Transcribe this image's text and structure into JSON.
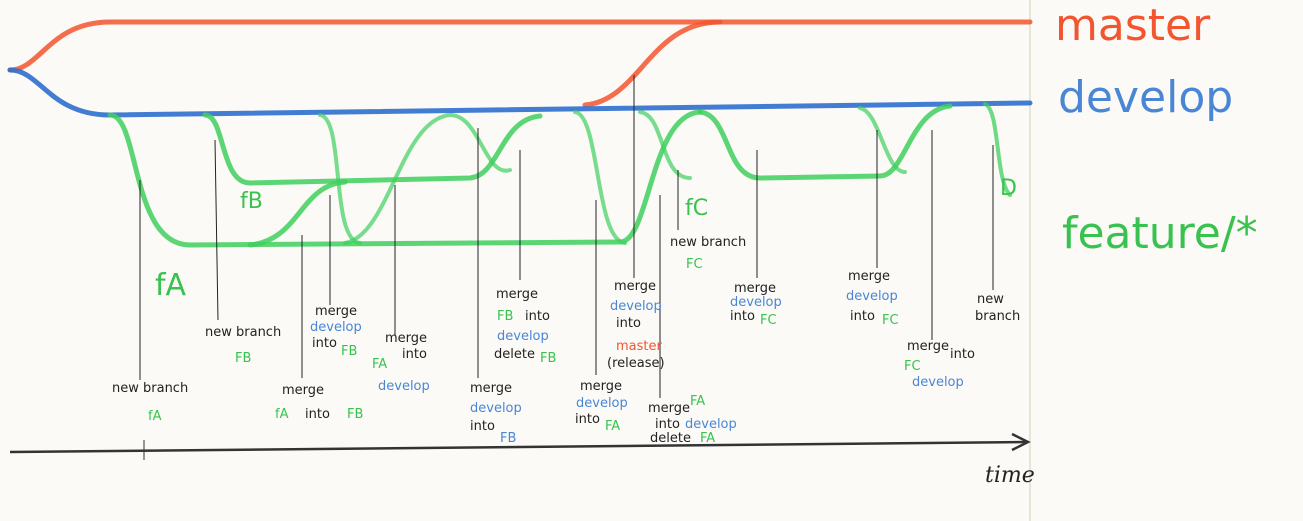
{
  "branches": {
    "master": "master",
    "develop": "develop",
    "feature": "feature/*"
  },
  "colors": {
    "master": "#f2552f",
    "develop": "#2f6fcf",
    "feature": "#3fcf5e",
    "text_blue": "#4a86d6",
    "text_green": "#39c24f",
    "text_red": "#f2552f"
  },
  "branch_names": {
    "fa_big": "fA",
    "fb_big": "fB",
    "fc_big": "fC",
    "d_big": "D"
  },
  "annotations": {
    "a1": {
      "l1": "new branch",
      "l2": "fA"
    },
    "a2": {
      "l1": "new branch",
      "l2": "FB"
    },
    "a3": {
      "l1": "merge",
      "l2": "fA",
      "l3": "into",
      "l4": "FB"
    },
    "a4": {
      "l1": "merge",
      "l2": "develop",
      "l3": "into",
      "l4": "FB"
    },
    "a5": {
      "l1": "FA",
      "l2": "merge",
      "l3": "into",
      "l4": "develop"
    },
    "a6": {
      "l1": "merge",
      "l2": "develop",
      "l3": "into",
      "l4": "FB"
    },
    "a7": {
      "l1": "merge",
      "l2": "FB",
      "l3": "into",
      "l4": "develop",
      "l5": "delete",
      "l6": "FB"
    },
    "a8": {
      "l1": "merge",
      "l2": "develop",
      "l3": "into",
      "l4": "FA"
    },
    "a9": {
      "l1": "merge",
      "l2": "develop",
      "l3": "into",
      "l4": "master",
      "l5": "(release)"
    },
    "a10": {
      "l1": "merge",
      "l2": "FA",
      "l3": "into",
      "l4": "develop",
      "l5": "delete",
      "l6": "FA"
    },
    "a11": {
      "l1": "new branch",
      "l2": "FC"
    },
    "a12": {
      "l1": "merge",
      "l2": "develop",
      "l3": "into",
      "l4": "FC"
    },
    "a13": {
      "l1": "merge",
      "l2": "develop",
      "l3": "into",
      "l4": "FC"
    },
    "a14": {
      "l1": "merge",
      "l2": "into",
      "l3": "FC",
      "l4": "develop"
    },
    "a15": {
      "l1": "new",
      "l2": "branch"
    }
  },
  "axis": {
    "label": "time"
  }
}
